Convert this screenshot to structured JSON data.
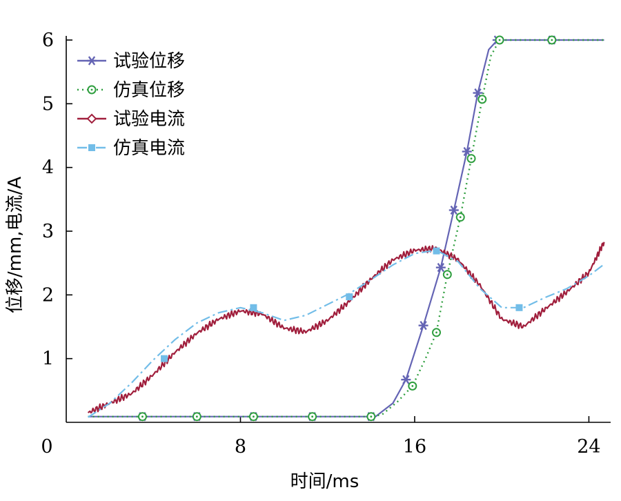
{
  "chart_data": {
    "type": "line",
    "xlabel": "时间/ms",
    "ylabel": "位移/mm,电流/A",
    "xlim": [
      0,
      25
    ],
    "ylim": [
      0,
      6
    ],
    "x_ticks": [
      0,
      8,
      16,
      24
    ],
    "y_ticks": [
      1,
      2,
      3,
      4,
      5,
      6
    ],
    "grid": false,
    "legend_position": "top-left",
    "series": [
      {
        "name": "试验位移",
        "color": "#6464b4",
        "line_style": "solid",
        "marker": "asterisk",
        "x": [
          1,
          3.5,
          6,
          8.6,
          11.3,
          14,
          14.2,
          15,
          15.6,
          16.4,
          17.2,
          17.8,
          18.4,
          18.9,
          19.4,
          19.8,
          22.3,
          24.7
        ],
        "y": [
          0.09,
          0.09,
          0.09,
          0.09,
          0.09,
          0.09,
          0.09,
          0.3,
          0.67,
          1.52,
          2.43,
          3.33,
          4.25,
          5.17,
          5.85,
          6.0,
          6.0,
          6.0
        ],
        "marker_x": [
          3.5,
          6,
          8.6,
          11.3,
          14,
          15.6,
          16.4,
          17.2,
          17.8,
          18.4,
          18.9,
          19.8,
          22.3
        ],
        "marker_y": [
          0.09,
          0.09,
          0.09,
          0.09,
          0.09,
          0.67,
          1.52,
          2.43,
          3.33,
          4.25,
          5.17,
          6.0,
          6.0
        ]
      },
      {
        "name": "仿真位移",
        "color": "#2e9e3e",
        "line_style": "dotted",
        "marker": "circle-dot",
        "x": [
          1,
          3.5,
          6,
          8.6,
          11.3,
          14,
          14.5,
          15.2,
          15.9,
          16.5,
          17,
          17.5,
          18.1,
          18.6,
          19.1,
          19.5,
          19.9,
          22.3,
          24.7
        ],
        "y": [
          0.09,
          0.09,
          0.09,
          0.09,
          0.09,
          0.09,
          0.12,
          0.32,
          0.57,
          1.0,
          1.41,
          2.32,
          3.22,
          4.14,
          5.07,
          5.75,
          6.0,
          6.0,
          6.0
        ],
        "marker_x": [
          3.5,
          6,
          8.6,
          11.3,
          14,
          15.9,
          17,
          17.5,
          18.1,
          18.6,
          19.1,
          19.9,
          22.3
        ],
        "marker_y": [
          0.09,
          0.09,
          0.09,
          0.09,
          0.09,
          0.57,
          1.41,
          2.32,
          3.22,
          4.14,
          5.07,
          6.0,
          6.0
        ]
      },
      {
        "name": "试验电流",
        "color": "#a01e3c",
        "line_style": "solid",
        "marker": "diamond",
        "x": [
          1,
          2,
          3,
          4,
          5,
          6,
          7,
          8,
          9,
          10,
          11,
          12,
          13,
          14,
          15,
          16,
          17,
          18,
          19,
          20,
          21,
          22,
          23,
          24,
          24.7
        ],
        "y": [
          0.15,
          0.3,
          0.45,
          0.75,
          1.1,
          1.4,
          1.62,
          1.75,
          1.7,
          1.48,
          1.42,
          1.6,
          1.9,
          2.25,
          2.55,
          2.7,
          2.73,
          2.55,
          2.15,
          1.62,
          1.5,
          1.78,
          2.05,
          2.35,
          2.83
        ],
        "marker_x": [],
        "marker_y": []
      },
      {
        "name": "仿真电流",
        "color": "#72bde8",
        "line_style": "dashdot",
        "marker": "square",
        "x": [
          1,
          2,
          3,
          4,
          5,
          6,
          7,
          8,
          9,
          10,
          11,
          12,
          13,
          14,
          15,
          16,
          17,
          18,
          19,
          20,
          21,
          22,
          23,
          24,
          24.7
        ],
        "y": [
          0.08,
          0.3,
          0.62,
          0.98,
          1.3,
          1.56,
          1.72,
          1.8,
          1.72,
          1.6,
          1.68,
          1.85,
          2.02,
          2.24,
          2.47,
          2.65,
          2.7,
          2.52,
          2.1,
          1.8,
          1.8,
          1.96,
          2.1,
          2.3,
          2.48
        ],
        "marker_x": [
          4.5,
          8.6,
          13,
          17,
          20.8
        ],
        "marker_y": [
          1.0,
          1.8,
          1.97,
          2.69,
          1.8
        ]
      }
    ]
  }
}
